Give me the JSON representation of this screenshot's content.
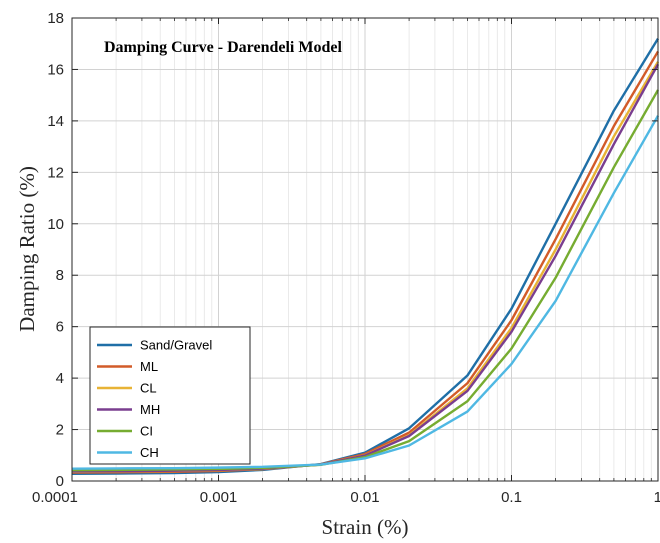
{
  "chart_data": {
    "type": "line",
    "title": "Damping Curve - Darendeli Model",
    "xlabel": "Strain (%)",
    "ylabel": "Damping Ratio (%)",
    "xscale": "log",
    "xlim": [
      0.0001,
      1
    ],
    "ylim": [
      0,
      18
    ],
    "xticks": [
      "0.0001",
      "0.001",
      "0.01",
      "0.1",
      "1"
    ],
    "yticks": [
      "0",
      "2",
      "4",
      "6",
      "8",
      "10",
      "12",
      "14",
      "16",
      "18"
    ],
    "grid": true,
    "legend_position": "bottom-left",
    "x": [
      0.0001,
      0.0002,
      0.0005,
      0.001,
      0.002,
      0.005,
      0.01,
      0.02,
      0.05,
      0.1,
      0.2,
      0.5,
      1
    ],
    "series": [
      {
        "name": "Sand/Gravel",
        "color": "#1f6fa7",
        "values": [
          0.28,
          0.29,
          0.31,
          0.35,
          0.43,
          0.66,
          1.1,
          2.05,
          4.1,
          6.7,
          10.0,
          14.4,
          17.2
        ]
      },
      {
        "name": "ML",
        "color": "#d25b29",
        "values": [
          0.33,
          0.34,
          0.36,
          0.39,
          0.46,
          0.65,
          1.05,
          1.88,
          3.8,
          6.25,
          9.4,
          13.8,
          16.7
        ]
      },
      {
        "name": "CL",
        "color": "#e8b335",
        "values": [
          0.36,
          0.37,
          0.39,
          0.42,
          0.47,
          0.64,
          1.0,
          1.78,
          3.6,
          5.95,
          9.0,
          13.4,
          16.3
        ]
      },
      {
        "name": "MH",
        "color": "#7a3e8f",
        "values": [
          0.37,
          0.38,
          0.4,
          0.43,
          0.48,
          0.64,
          0.99,
          1.75,
          3.5,
          5.8,
          8.75,
          13.1,
          16.2
        ]
      },
      {
        "name": "CI",
        "color": "#76ac31",
        "values": [
          0.42,
          0.43,
          0.45,
          0.47,
          0.51,
          0.63,
          0.93,
          1.55,
          3.1,
          5.15,
          7.9,
          12.2,
          15.2
        ]
      },
      {
        "name": "CH",
        "color": "#4fb8e3",
        "values": [
          0.48,
          0.49,
          0.5,
          0.52,
          0.55,
          0.64,
          0.88,
          1.38,
          2.7,
          4.55,
          7.0,
          11.2,
          14.2
        ]
      }
    ]
  }
}
